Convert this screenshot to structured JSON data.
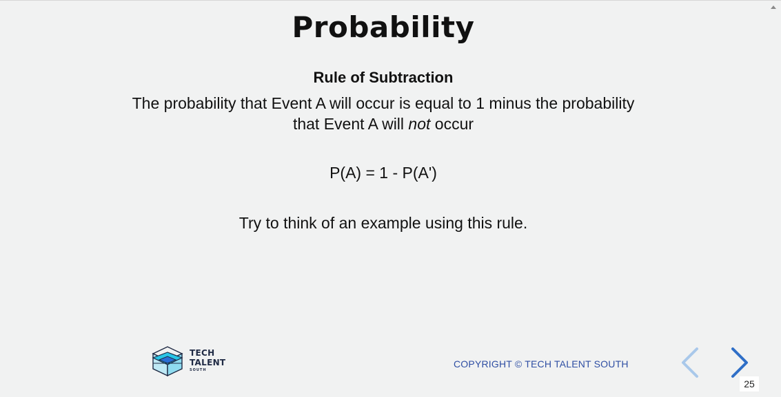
{
  "slide": {
    "title": "Probability",
    "subtitle": "Rule of Subtraction",
    "description_line1": "The probability that Event A will occur is equal to 1 minus the probability",
    "description_line2_before": "that Event A will ",
    "description_line2_italic": "not",
    "description_line2_after": " occur",
    "formula": "P(A) = 1 - P(A')",
    "prompt": "Try to think of an example using this rule."
  },
  "footer": {
    "logo_line1": "TECH",
    "logo_line2": "TALENT",
    "logo_line3": "SOUTH",
    "copyright": "COPYRIGHT © TECH TALENT SOUTH",
    "page_number": "25"
  },
  "nav": {
    "prev_icon": "chevron-left-icon",
    "next_icon": "chevron-right-icon",
    "prev_color": "#a9c8ea",
    "next_color": "#2f6fc7"
  },
  "colors": {
    "background": "#f1f2f2",
    "copyright": "#2e4ea3",
    "logo_cyan": "#29c5e6",
    "logo_navy": "#1f2a44"
  }
}
